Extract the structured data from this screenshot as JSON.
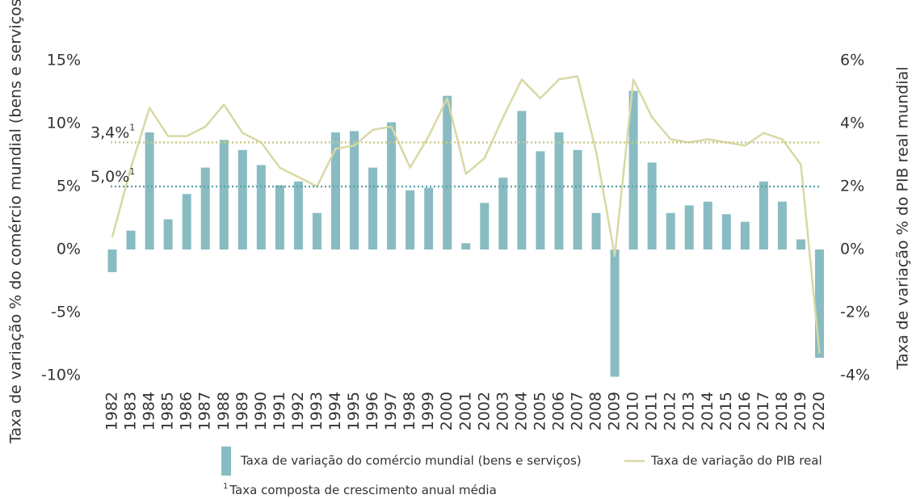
{
  "chart_data": {
    "type": "bar_line",
    "y_label": "Taxa de variação % do comércio mundial (bens e serviços)",
    "y2_label": "Taxa de variação % do PIB real mundial",
    "categories": [
      "1982",
      "1983",
      "1984",
      "1985",
      "1986",
      "1987",
      "1988",
      "1989",
      "1990",
      "1991",
      "1992",
      "1993",
      "1994",
      "1995",
      "1996",
      "1997",
      "1998",
      "1999",
      "2000",
      "2001",
      "2002",
      "2003",
      "2004",
      "2005",
      "2006",
      "2007",
      "2008",
      "2009",
      "2010",
      "2011",
      "2012",
      "2013",
      "2014",
      "2015",
      "2016",
      "2017",
      "2018",
      "2019",
      "2020"
    ],
    "series": [
      {
        "name": "Taxa de variação do comércio mundial (bens e serviços)",
        "type": "bar",
        "color": "#88bcc2",
        "axis": "y",
        "values": [
          -1.8,
          1.5,
          9.3,
          2.4,
          4.4,
          6.5,
          8.7,
          7.9,
          6.7,
          5.1,
          5.4,
          2.9,
          9.3,
          9.4,
          6.5,
          10.1,
          4.7,
          4.9,
          12.2,
          0.5,
          3.7,
          5.7,
          11.0,
          7.8,
          9.3,
          7.9,
          2.9,
          -10.1,
          12.6,
          6.9,
          2.9,
          3.5,
          3.8,
          2.8,
          2.2,
          5.4,
          3.8,
          0.8,
          -8.6
        ]
      },
      {
        "name": "Taxa de variação do PIB real",
        "type": "line",
        "color": "#d8d8a4",
        "axis": "y2",
        "values": [
          0.4,
          2.6,
          4.5,
          3.6,
          3.6,
          3.9,
          4.6,
          3.7,
          3.4,
          2.6,
          2.3,
          2.0,
          3.2,
          3.3,
          3.8,
          3.9,
          2.6,
          3.6,
          4.8,
          2.4,
          2.9,
          4.2,
          5.4,
          4.8,
          5.4,
          5.5,
          3.1,
          -0.2,
          5.4,
          4.2,
          3.5,
          3.4,
          3.5,
          3.4,
          3.3,
          3.7,
          3.5,
          2.7,
          -3.3
        ]
      }
    ],
    "reference_lines": [
      {
        "label": "3,4%",
        "note": "1",
        "value": 3.4,
        "axis": "y2",
        "color": "#c9c98a"
      },
      {
        "label": "5,0%",
        "note": "1",
        "value": 5.0,
        "axis": "y",
        "color": "#5fa3aa"
      }
    ],
    "footnote": {
      "mark": "1",
      "text": "Taxa composta de crescimento anual média"
    },
    "ylim": [
      -10,
      15
    ],
    "yticks": [
      {
        "value": -10,
        "label": "-10%"
      },
      {
        "value": -5,
        "label": "-5%"
      },
      {
        "value": 0,
        "label": "0%"
      },
      {
        "value": 5,
        "label": "5%"
      },
      {
        "value": 10,
        "label": "10%"
      },
      {
        "value": 15,
        "label": "15%"
      }
    ],
    "y2lim": [
      -4,
      6
    ],
    "y2ticks": [
      {
        "value": -4,
        "label": "-4%"
      },
      {
        "value": -2,
        "label": "-2%"
      },
      {
        "value": 0,
        "label": "0%"
      },
      {
        "value": 2,
        "label": "2%"
      },
      {
        "value": 4,
        "label": "4%"
      },
      {
        "value": 6,
        "label": "6%"
      }
    ]
  }
}
